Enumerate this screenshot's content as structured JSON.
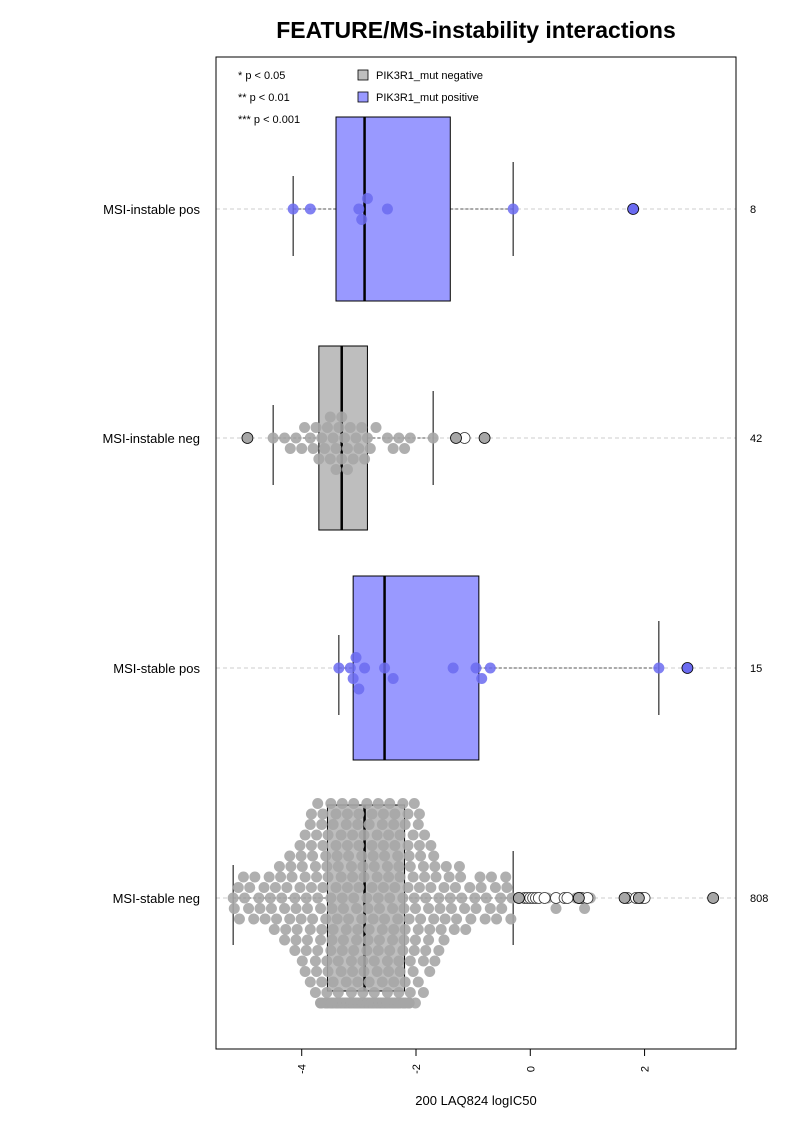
{
  "chart_data": {
    "type": "box",
    "title": "FEATURE/MS-instability interactions",
    "xlabel": "200 LAQ824 logIC50",
    "ylabel": "",
    "xlim": [
      -5.5,
      3.6
    ],
    "x_ticks": [
      -4,
      -2,
      0,
      2
    ],
    "x_tick_labels": [
      "-4",
      "-2",
      "0",
      "2"
    ],
    "significance_legend": [
      "* p < 0.05",
      "** p < 0.01",
      "*** p < 0.001"
    ],
    "legend": {
      "position": "top",
      "entries": [
        {
          "label": "PIK3R1_mut negative",
          "color": "#bebebe"
        },
        {
          "label": "PIK3R1_mut positive",
          "color": "#9999ff"
        }
      ]
    },
    "colors": {
      "negative": "#bebebe",
      "positive": "#9999ff",
      "negative_points": "#a6a6a6",
      "positive_points": "#6b6bf0"
    },
    "groups": [
      {
        "name": "MSI-instable pos",
        "n": "8",
        "mutation": "positive",
        "box": {
          "q1": -3.4,
          "median": -2.9,
          "q3": -1.4,
          "whisker_low": -4.15,
          "whisker_high": -0.3
        },
        "points": [
          -4.15,
          -3.85,
          -3.0,
          -2.95,
          -2.85,
          -2.5,
          -0.3
        ],
        "outliers": [
          1.8
        ]
      },
      {
        "name": "MSI-instable neg",
        "n": "42",
        "mutation": "negative",
        "box": {
          "q1": -3.7,
          "median": -3.3,
          "q3": -2.85,
          "whisker_low": -4.5,
          "whisker_high": -1.7
        },
        "points": [
          -4.5,
          -4.3,
          -4.2,
          -4.1,
          -4.0,
          -3.95,
          -3.85,
          -3.8,
          -3.75,
          -3.7,
          -3.65,
          -3.6,
          -3.55,
          -3.5,
          -3.5,
          -3.45,
          -3.4,
          -3.4,
          -3.35,
          -3.3,
          -3.3,
          -3.25,
          -3.2,
          -3.2,
          -3.15,
          -3.1,
          -3.05,
          -3.0,
          -2.95,
          -2.9,
          -2.85,
          -2.8,
          -2.7,
          -2.5,
          -2.4,
          -2.3,
          -2.2,
          -2.1,
          -1.7
        ],
        "outliers": [
          -4.95,
          -1.3,
          -0.8
        ],
        "open_points": [
          -1.15
        ]
      },
      {
        "name": "MSI-stable pos",
        "n": "15",
        "mutation": "positive",
        "box": {
          "q1": -3.1,
          "median": -2.55,
          "q3": -0.9,
          "whisker_low": -3.35,
          "whisker_high": 2.25
        },
        "points": [
          -3.35,
          -3.15,
          -3.1,
          -3.05,
          -3.0,
          -2.9,
          -2.55,
          -2.4,
          -1.35,
          -0.95,
          -0.85,
          -0.7,
          2.25
        ],
        "outliers": [
          2.75
        ]
      },
      {
        "name": "MSI-stable neg",
        "n": "808",
        "mutation": "negative",
        "box": {
          "q1": -3.55,
          "median": -2.9,
          "q3": -2.2,
          "whisker_low": -5.2,
          "whisker_high": -0.3
        },
        "points": [],
        "dense_range": [
          -5.2,
          -0.3
        ],
        "tail_points": [
          0.05,
          0.3,
          0.45,
          0.6,
          0.8,
          0.95,
          1.05
        ],
        "open_points": [
          -0.1,
          -0.05,
          0.0,
          0.05,
          0.1,
          0.15,
          0.25,
          0.45,
          0.6,
          0.65,
          0.85,
          0.9,
          1.0,
          1.7,
          1.85,
          1.95,
          2.0
        ],
        "outliers": [
          -0.2,
          0.85,
          1.65,
          1.9,
          3.2
        ]
      }
    ]
  }
}
